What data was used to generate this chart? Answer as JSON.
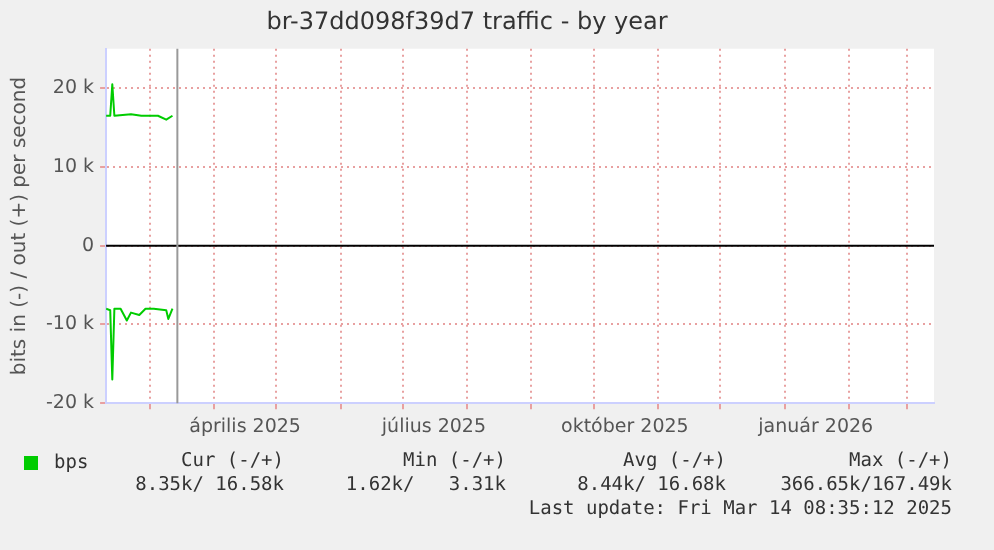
{
  "chart_data": {
    "type": "line",
    "title": "br-37dd098f39d7 traffic - by year",
    "ylabel": "bits in (-) / out (+) per second",
    "series": [
      {
        "name": "bps",
        "color": "#00cc00",
        "x": [
          "2025-02-08",
          "2025-02-10",
          "2025-02-11",
          "2025-02-12",
          "2025-02-20",
          "2025-02-25",
          "2025-03-05",
          "2025-03-09",
          "2025-03-12"
        ],
        "values": [
          16500,
          16500,
          20500,
          16500,
          16700,
          16500,
          16500,
          16000,
          16500
        ]
      },
      {
        "color": "#00cc00",
        "x": [
          "2025-02-08",
          "2025-02-10",
          "2025-02-11",
          "2025-02-12",
          "2025-02-15",
          "2025-02-18",
          "2025-02-20",
          "2025-02-24",
          "2025-02-27",
          "2025-03-03",
          "2025-03-09",
          "2025-03-10",
          "2025-03-12"
        ],
        "values": [
          -8000,
          -8200,
          -17000,
          -8000,
          -8000,
          -9500,
          -8500,
          -8800,
          -8000,
          -8000,
          -8200,
          -9300,
          -8000
        ]
      }
    ],
    "xlim": [
      "2025-02-08",
      "2026-03-14"
    ],
    "xticks": [
      {
        "value": "2025-03-01",
        "label": null
      },
      {
        "value": "2025-04-01",
        "label": null
      },
      {
        "value": "2025-04-16",
        "label": "április 2025"
      },
      {
        "value": "2025-05-01",
        "label": null
      },
      {
        "value": "2025-06-01",
        "label": null
      },
      {
        "value": "2025-07-01",
        "label": null
      },
      {
        "value": "2025-07-16",
        "label": "július 2025"
      },
      {
        "value": "2025-08-01",
        "label": null
      },
      {
        "value": "2025-09-01",
        "label": null
      },
      {
        "value": "2025-10-01",
        "label": null
      },
      {
        "value": "2025-10-16",
        "label": "október 2025"
      },
      {
        "value": "2025-11-01",
        "label": null
      },
      {
        "value": "2025-12-01",
        "label": null
      },
      {
        "value": "2026-01-01",
        "label": null
      },
      {
        "value": "2026-01-16",
        "label": "január 2026"
      },
      {
        "value": "2026-02-01",
        "label": null
      },
      {
        "value": "2026-03-01",
        "label": null
      }
    ],
    "ylim": [
      -20000,
      25000
    ],
    "yticks": [
      {
        "value": -20000,
        "label": "-20 k"
      },
      {
        "value": -10000,
        "label": "-10 k"
      },
      {
        "value": 0,
        "label": "0"
      },
      {
        "value": 10000,
        "label": "10 k"
      },
      {
        "value": 20000,
        "label": "20 k"
      }
    ],
    "grid": true,
    "legend": "bottom",
    "marker": "none",
    "line_style": "solid",
    "ref_lines": [
      {
        "axis": "y",
        "value": 0,
        "color": "#000000"
      },
      {
        "axis": "x",
        "value": "2025-03-14T08:35",
        "color": "#999999"
      }
    ],
    "annotations": [
      "Cur (-/+)",
      "Min (-/+)",
      "Avg (-/+)",
      "Max (-/+)",
      "8.35k/ 16.58k",
      "1.62k/   3.31k",
      "8.44k/ 16.68k",
      "366.65k/167.49k",
      "Last update: Fri Mar 14 08:35:12 2025"
    ]
  }
}
